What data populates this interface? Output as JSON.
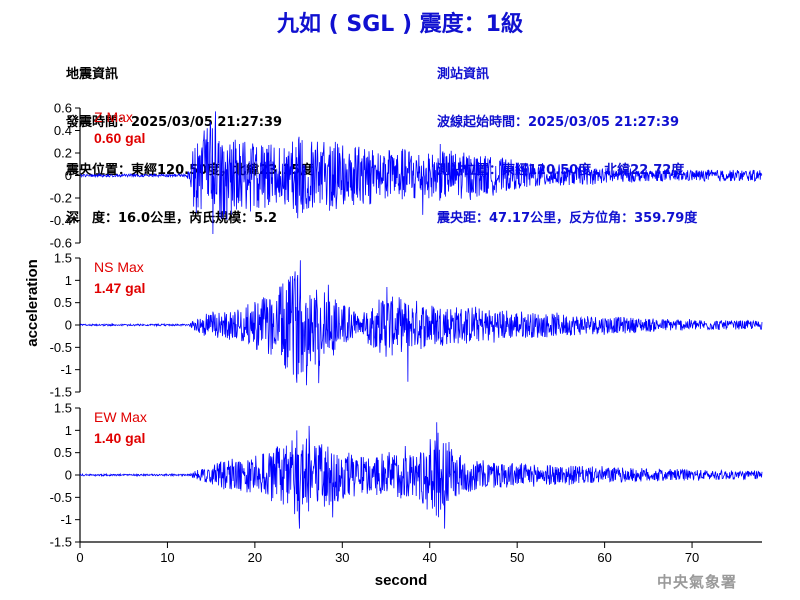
{
  "title": "九如 ( SGL ) 震度：1級",
  "quake_info": {
    "heading": "地震資訊",
    "origin_time": "發震時間：2025/03/05 21:27:39",
    "epicenter": "震央位置：東經120.50度，北緯23.15度",
    "depth_magnitude": "深　度：16.0公里，芮氏規模：5.2"
  },
  "station_info": {
    "heading": "測站資訊",
    "wave_start_time": "波線起始時間：2025/03/05 21:27:39",
    "station_location": "測站位置：東經120.50度，北緯22.72度",
    "epicentral_distance": "震央距：47.17公里，反方位角：359.79度"
  },
  "credit": "中央氣象署",
  "colors": {
    "title": "#1010d0",
    "trace": "#0000ff",
    "max_label": "#e00000",
    "axes": "#000000"
  },
  "chart_data": {
    "type": "line",
    "xlabel": "second",
    "ylabel": "acceleration",
    "xlim": [
      0,
      78
    ],
    "xticks": [
      0,
      10,
      20,
      30,
      40,
      50,
      60,
      70
    ],
    "grid": false,
    "panels": [
      {
        "name": "Z",
        "max_label": "Z Max",
        "max_value": "0.60 gal",
        "ylim": [
          -0.6,
          0.6
        ],
        "yticks": [
          -0.6,
          -0.4,
          -0.2,
          0,
          0.2,
          0.4,
          0.6
        ],
        "yticklabels": [
          "-0.6",
          "-0.4",
          "-0.2",
          "0",
          "0.2",
          "0.4",
          "0.6"
        ],
        "envelope": [
          [
            0,
            0.012
          ],
          [
            12,
            0.012
          ],
          [
            12.6,
            0.05
          ],
          [
            13,
            0.28
          ],
          [
            14,
            0.36
          ],
          [
            15,
            0.5
          ],
          [
            16,
            0.45
          ],
          [
            17,
            0.35
          ],
          [
            19,
            0.3
          ],
          [
            20,
            0.3
          ],
          [
            22,
            0.25
          ],
          [
            24,
            0.28
          ],
          [
            25,
            0.36
          ],
          [
            27,
            0.3
          ],
          [
            30,
            0.3
          ],
          [
            33,
            0.25
          ],
          [
            36,
            0.22
          ],
          [
            38,
            0.25
          ],
          [
            40,
            0.2
          ],
          [
            42,
            0.22
          ],
          [
            45,
            0.2
          ],
          [
            50,
            0.12
          ],
          [
            55,
            0.09
          ],
          [
            60,
            0.07
          ],
          [
            65,
            0.05
          ],
          [
            70,
            0.05
          ],
          [
            75,
            0.05
          ],
          [
            78,
            0.05
          ]
        ],
        "peaks": [
          [
            15.5,
            0.57
          ],
          [
            15.2,
            -0.52
          ],
          [
            14.2,
            0.4
          ],
          [
            16.4,
            -0.38
          ],
          [
            19.5,
            -0.32
          ],
          [
            24.9,
            -0.38
          ],
          [
            26.5,
            0.3
          ],
          [
            39.2,
            -0.35
          ],
          [
            41.2,
            0.28
          ]
        ]
      },
      {
        "name": "NS",
        "max_label": "NS Max",
        "max_value": "1.47 gal",
        "ylim": [
          -1.5,
          1.5
        ],
        "yticks": [
          -1.5,
          -1,
          -0.5,
          0,
          0.5,
          1,
          1.5
        ],
        "yticklabels": [
          "-1.5",
          "-1",
          "-0.5",
          "0",
          "0.5",
          "1",
          "1.5"
        ],
        "envelope": [
          [
            0,
            0.02
          ],
          [
            12.5,
            0.02
          ],
          [
            13,
            0.1
          ],
          [
            14,
            0.25
          ],
          [
            15,
            0.3
          ],
          [
            17,
            0.3
          ],
          [
            19,
            0.4
          ],
          [
            20,
            0.55
          ],
          [
            22,
            0.7
          ],
          [
            23,
            0.9
          ],
          [
            24,
            1.1
          ],
          [
            25,
            1.2
          ],
          [
            26,
            0.9
          ],
          [
            27,
            0.95
          ],
          [
            28,
            0.8
          ],
          [
            29,
            0.7
          ],
          [
            30,
            0.5
          ],
          [
            31,
            0.45
          ],
          [
            32,
            0.15
          ],
          [
            33,
            0.4
          ],
          [
            34,
            0.6
          ],
          [
            35,
            0.75
          ],
          [
            36,
            0.6
          ],
          [
            37,
            0.55
          ],
          [
            40,
            0.5
          ],
          [
            42,
            0.45
          ],
          [
            45,
            0.4
          ],
          [
            48,
            0.35
          ],
          [
            50,
            0.3
          ],
          [
            55,
            0.25
          ],
          [
            60,
            0.2
          ],
          [
            65,
            0.15
          ],
          [
            70,
            0.12
          ],
          [
            75,
            0.1
          ],
          [
            78,
            0.1
          ]
        ],
        "peaks": [
          [
            25.2,
            1.45
          ],
          [
            25.9,
            -1.35
          ],
          [
            24.6,
            1.2
          ],
          [
            27.3,
            -1.3
          ],
          [
            28.4,
            0.9
          ],
          [
            37.5,
            -1.27
          ],
          [
            35.1,
            0.85
          ],
          [
            23.7,
            -0.95
          ]
        ]
      },
      {
        "name": "EW",
        "max_label": "EW Max",
        "max_value": "1.40 gal",
        "ylim": [
          -1.5,
          1.5
        ],
        "yticks": [
          -1.5,
          -1,
          -0.5,
          0,
          0.5,
          1,
          1.5
        ],
        "yticklabels": [
          "-1.5",
          "-1",
          "-0.5",
          "0",
          "0.5",
          "1",
          "1.5"
        ],
        "envelope": [
          [
            0,
            0.02
          ],
          [
            12.5,
            0.02
          ],
          [
            13,
            0.08
          ],
          [
            14,
            0.15
          ],
          [
            15,
            0.2
          ],
          [
            16,
            0.3
          ],
          [
            18,
            0.35
          ],
          [
            20,
            0.4
          ],
          [
            22,
            0.6
          ],
          [
            24,
            0.8
          ],
          [
            25,
            0.95
          ],
          [
            26,
            0.9
          ],
          [
            27,
            0.7
          ],
          [
            28,
            0.65
          ],
          [
            30,
            0.6
          ],
          [
            32,
            0.4
          ],
          [
            34,
            0.45
          ],
          [
            36,
            0.55
          ],
          [
            38,
            0.5
          ],
          [
            40,
            0.8
          ],
          [
            41,
            1.0
          ],
          [
            42,
            0.8
          ],
          [
            43,
            0.5
          ],
          [
            45,
            0.35
          ],
          [
            48,
            0.3
          ],
          [
            50,
            0.25
          ],
          [
            55,
            0.22
          ],
          [
            60,
            0.18
          ],
          [
            65,
            0.15
          ],
          [
            70,
            0.12
          ],
          [
            75,
            0.1
          ],
          [
            78,
            0.1
          ]
        ],
        "peaks": [
          [
            25.1,
            -1.2
          ],
          [
            24.8,
            1.0
          ],
          [
            26.2,
            1.1
          ],
          [
            40.8,
            1.18
          ],
          [
            41.7,
            -1.2
          ],
          [
            37.2,
            0.65
          ],
          [
            28.9,
            -0.95
          ],
          [
            22.8,
            0.6
          ]
        ]
      }
    ]
  }
}
